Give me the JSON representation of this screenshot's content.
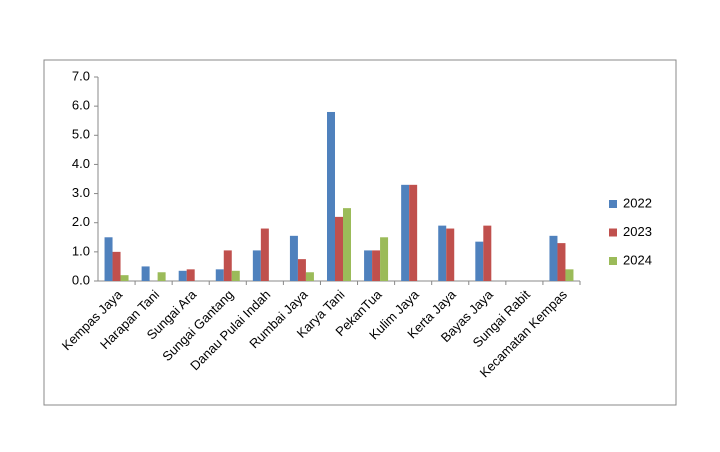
{
  "chart_data": {
    "type": "bar",
    "categories": [
      "Kempas Jaya",
      "Harapan Tani",
      "Sungai Ara",
      "Sungai Gantang",
      "Danau Pulai Indah",
      "Rumbai Jaya",
      "Karya Tani",
      "PekanTua",
      "Kulim Jaya",
      "Kerta Jaya",
      "Bayas Jaya",
      "Sungai Rabit",
      "Kecamatan Kempas"
    ],
    "series": [
      {
        "name": "2022",
        "color": "#4f81bd",
        "values": [
          1.5,
          0.5,
          0.35,
          0.4,
          1.05,
          1.55,
          5.8,
          1.05,
          3.3,
          1.9,
          1.35,
          null,
          1.55
        ]
      },
      {
        "name": "2023",
        "color": "#c0504d",
        "values": [
          1.0,
          null,
          0.4,
          1.05,
          1.8,
          0.75,
          2.2,
          1.05,
          3.3,
          1.8,
          1.9,
          null,
          1.3
        ]
      },
      {
        "name": "2024",
        "color": "#9bbb59",
        "values": [
          0.2,
          0.3,
          null,
          0.35,
          null,
          0.3,
          2.5,
          1.5,
          null,
          null,
          null,
          null,
          0.4
        ]
      }
    ],
    "ylim": [
      0,
      7
    ],
    "yticks": [
      {
        "value": 0,
        "label": "0.0"
      },
      {
        "value": 1,
        "label": "1.0"
      },
      {
        "value": 2,
        "label": "2.0"
      },
      {
        "value": 3,
        "label": "3.0"
      },
      {
        "value": 4,
        "label": "4.0"
      },
      {
        "value": 5,
        "label": "5.0"
      },
      {
        "value": 6,
        "label": "6.0"
      },
      {
        "value": 7,
        "label": "7.0"
      }
    ],
    "grid": false,
    "legend": "right"
  }
}
